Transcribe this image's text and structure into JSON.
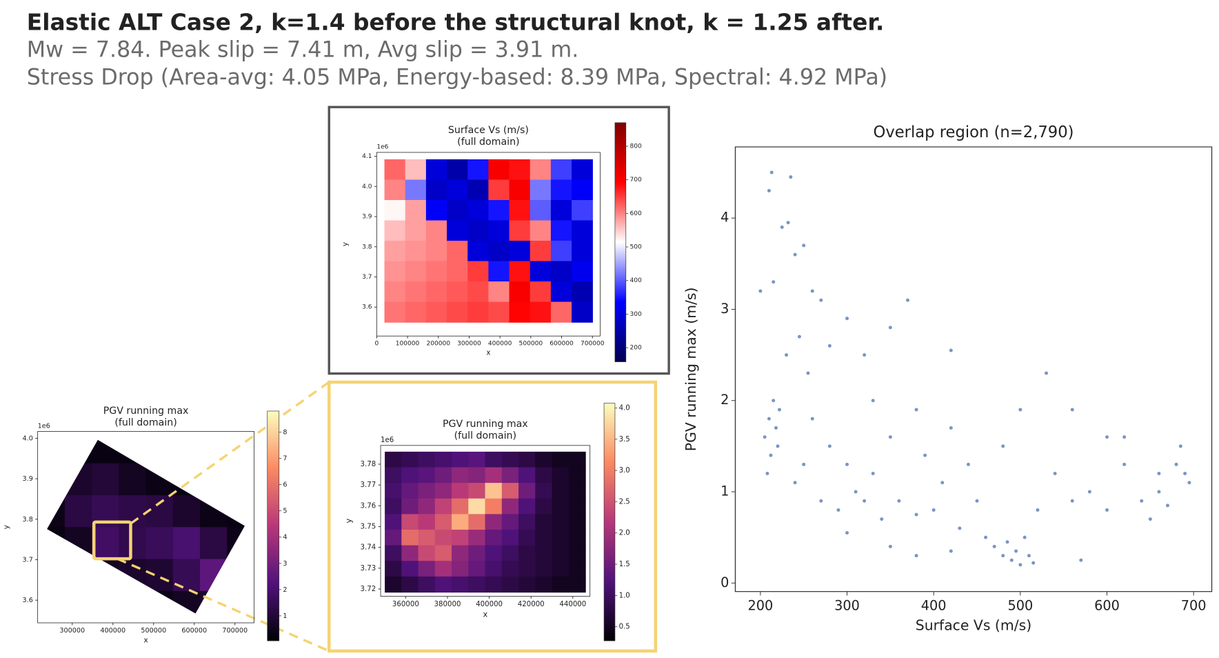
{
  "header": {
    "title": "Elastic ALT Case 2, k=1.4 before the structural knot, k = 1.25 after.",
    "subtitle_lines": [
      "Mw = 7.84. Peak slip = 7.41 m, Avg slip = 3.91 m.",
      "Stress Drop (Area-avg: 4.05 MPa, Energy-based: 8.39 MPa, Spectral: 4.92 MPa)"
    ]
  },
  "chart_data": [
    {
      "type": "heatmap",
      "title": "Surface Vs (m/s)",
      "subtitle": "(full domain)",
      "xlabel": "x",
      "ylabel": "y",
      "y_offset": "1e6",
      "colormap": "seismic",
      "clim": [
        158,
        870
      ],
      "cbticks": [
        200,
        300,
        400,
        500,
        600,
        700,
        800
      ],
      "xlim": [
        0,
        725000
      ],
      "xticks": [
        0,
        100000,
        200000,
        300000,
        400000,
        500000,
        600000,
        700000
      ],
      "ylim": [
        3.504,
        4.113
      ],
      "yticks": [
        3.6,
        3.7,
        3.8,
        3.9,
        {
          "value": 4,
          "label": "4.0"
        },
        4.1
      ],
      "x_extent": [
        25000,
        700000
      ],
      "y_extent": [
        3.55,
        4.09
      ],
      "z": [
        [
          620,
          560,
          300,
          250,
          350,
          700,
          680,
          600,
          380,
          300
        ],
        [
          600,
          420,
          280,
          300,
          260,
          650,
          700,
          420,
          350,
          330
        ],
        [
          520,
          580,
          330,
          280,
          300,
          350,
          680,
          400,
          300,
          380
        ],
        [
          560,
          580,
          600,
          300,
          280,
          300,
          650,
          600,
          350,
          300
        ],
        [
          580,
          590,
          600,
          620,
          300,
          280,
          300,
          650,
          380,
          300
        ],
        [
          590,
          600,
          610,
          620,
          650,
          350,
          680,
          300,
          280,
          320
        ],
        [
          600,
          610,
          620,
          630,
          640,
          600,
          700,
          650,
          300,
          260
        ],
        [
          610,
          620,
          630,
          640,
          650,
          640,
          690,
          680,
          620,
          280
        ]
      ]
    },
    {
      "type": "heatmap",
      "title": "PGV running max",
      "subtitle": "(full domain)",
      "xlabel": "x",
      "ylabel": "y",
      "y_offset": "1e6",
      "colormap": "magma",
      "clim": [
        0.05,
        8.8
      ],
      "cbticks": [
        1,
        2,
        3,
        4,
        5,
        6,
        7,
        8
      ],
      "xlim": [
        215000,
        747000
      ],
      "xticks": [
        300000,
        400000,
        500000,
        600000,
        700000
      ],
      "ylim": [
        3.544,
        4.017
      ],
      "yticks": [
        3.6,
        3.7,
        3.8,
        3.9,
        {
          "value": 4,
          "label": "4.0"
        }
      ],
      "x_extent": [
        215000,
        747000
      ],
      "y_extent": [
        3.544,
        4.017
      ],
      "z": [
        [
          0.3,
          0.3,
          0.3,
          0.3,
          0.3,
          0.3,
          0.3,
          0.3
        ],
        [
          0.3,
          0.8,
          1.0,
          0.6,
          0.4,
          0.3,
          0.3,
          0.3
        ],
        [
          0.4,
          1.2,
          1.5,
          1.3,
          1.2,
          0.8,
          0.4,
          0.3
        ],
        [
          0.3,
          0.6,
          1.8,
          1.4,
          1.6,
          2.0,
          1.2,
          0.4
        ],
        [
          0.3,
          0.3,
          0.6,
          0.8,
          0.9,
          1.5,
          2.5,
          0.6
        ],
        [
          0.3,
          0.3,
          0.3,
          0.3,
          0.4,
          0.6,
          0.8,
          0.4
        ]
      ]
    },
    {
      "type": "heatmap",
      "title": "PGV running max",
      "subtitle": "(full domain)",
      "xlabel": "x",
      "ylabel": "y",
      "y_offset": "1e6",
      "colormap": "magma",
      "clim": [
        0.275,
        4.075
      ],
      "cbticks": [
        0.5,
        {
          "value": 1,
          "label": "1.0"
        },
        1.5,
        {
          "value": 2,
          "label": "2.0"
        },
        2.5,
        {
          "value": 3,
          "label": "3.0"
        },
        3.5,
        {
          "value": 4,
          "label": "4.0"
        }
      ],
      "xlim": [
        348000,
        448200
      ],
      "xticks": [
        360000,
        380000,
        400000,
        420000,
        440000
      ],
      "ylim": [
        3.7165,
        3.789
      ],
      "yticks": [
        3.72,
        3.73,
        3.74,
        3.75,
        3.76,
        3.77,
        3.78
      ],
      "x_extent": [
        350000,
        446000
      ],
      "y_extent": [
        3.7185,
        3.786
      ],
      "z": [
        [
          0.8,
          0.9,
          1.0,
          1.1,
          1.2,
          1.3,
          1.0,
          0.9,
          0.8,
          0.6,
          0.5,
          0.5
        ],
        [
          1.0,
          1.2,
          1.3,
          1.5,
          1.8,
          1.7,
          2.0,
          1.6,
          1.2,
          0.8,
          0.6,
          0.5
        ],
        [
          1.1,
          1.4,
          1.6,
          1.8,
          2.2,
          2.4,
          3.6,
          2.6,
          1.5,
          0.9,
          0.6,
          0.5
        ],
        [
          1.0,
          1.5,
          1.8,
          2.3,
          2.8,
          3.8,
          3.0,
          1.8,
          1.2,
          0.8,
          0.6,
          0.5
        ],
        [
          1.2,
          2.4,
          2.2,
          2.6,
          3.4,
          2.8,
          1.8,
          1.4,
          1.0,
          0.7,
          0.6,
          0.5
        ],
        [
          1.4,
          2.8,
          2.6,
          2.4,
          2.3,
          1.9,
          1.4,
          1.2,
          0.9,
          0.7,
          0.6,
          0.5
        ],
        [
          1.0,
          1.8,
          2.4,
          2.6,
          1.8,
          1.5,
          1.2,
          1.0,
          0.8,
          0.7,
          0.6,
          0.5
        ],
        [
          0.8,
          1.2,
          1.6,
          2.0,
          1.7,
          1.4,
          1.1,
          0.9,
          0.8,
          0.7,
          0.6,
          0.5
        ],
        [
          0.6,
          0.8,
          1.0,
          1.2,
          1.1,
          1.0,
          0.9,
          0.8,
          0.7,
          0.6,
          0.5,
          0.5
        ]
      ]
    },
    {
      "type": "scatter",
      "title": "Overlap region (n=2,790)",
      "xlabel": "Surface Vs (m/s)",
      "ylabel": "PGV running max (m/s)",
      "color": "#4c72b0",
      "xlim": [
        171,
        721
      ],
      "xticks": [
        200,
        300,
        400,
        500,
        600,
        700
      ],
      "ylim": [
        -0.094,
        4.78
      ],
      "yticks": [
        0,
        1,
        2,
        3,
        4
      ],
      "x": [
        205,
        210,
        212,
        215,
        218,
        220,
        208,
        222,
        213,
        210,
        235,
        225,
        232,
        200,
        215,
        240,
        250,
        260,
        270,
        245,
        230,
        255,
        280,
        300,
        320,
        350,
        370,
        420,
        260,
        280,
        300,
        310,
        320,
        330,
        290,
        340,
        360,
        380,
        400,
        410,
        390,
        350,
        330,
        380,
        420,
        440,
        450,
        430,
        460,
        470,
        480,
        490,
        500,
        510,
        495,
        505,
        485,
        515,
        520,
        530,
        500,
        480,
        540,
        560,
        570,
        580,
        600,
        620,
        640,
        650,
        660,
        670,
        680,
        690,
        695,
        685,
        660,
        620,
        300,
        350,
        380,
        420,
        560,
        600,
        250,
        270,
        240
      ],
      "y": [
        1.6,
        1.8,
        1.4,
        2.0,
        1.7,
        1.5,
        1.2,
        1.9,
        4.5,
        4.3,
        4.45,
        3.9,
        3.95,
        3.2,
        3.3,
        3.6,
        3.7,
        3.2,
        3.1,
        2.7,
        2.5,
        2.3,
        2.6,
        2.9,
        2.5,
        2.8,
        3.1,
        2.55,
        1.8,
        1.5,
        1.3,
        1.0,
        0.9,
        1.2,
        0.8,
        0.7,
        0.9,
        0.75,
        0.8,
        1.1,
        1.4,
        1.6,
        2.0,
        1.9,
        1.7,
        1.3,
        0.9,
        0.6,
        0.5,
        0.4,
        0.3,
        0.25,
        0.2,
        0.3,
        0.35,
        0.5,
        0.45,
        0.22,
        0.8,
        2.3,
        1.9,
        1.5,
        1.2,
        0.9,
        0.25,
        1.0,
        0.8,
        1.3,
        0.9,
        0.7,
        1.0,
        0.85,
        1.3,
        1.2,
        1.1,
        1.5,
        1.2,
        1.6,
        0.55,
        0.4,
        0.3,
        0.35,
        1.9,
        1.6,
        1.3,
        0.9,
        1.1
      ]
    }
  ]
}
